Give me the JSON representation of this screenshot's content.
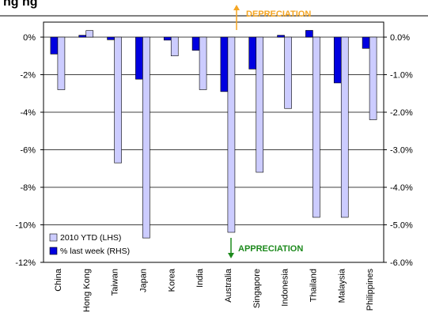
{
  "chart_data": {
    "type": "bar",
    "title": "",
    "title_fragment": "ng      ng",
    "categories": [
      "China",
      "Hong Kong",
      "Taiwan",
      "Japan",
      "Korea",
      "India",
      "Australia",
      "Singapore",
      "Indonesia",
      "Thailand",
      "Malaysia",
      "Philippines"
    ],
    "series": [
      {
        "name": "2010 YTD (LHS)",
        "axis": "left",
        "color": "#ccccff",
        "values": [
          -2.8,
          0.35,
          -6.7,
          -10.7,
          -1.0,
          -2.8,
          -10.4,
          -7.2,
          -3.8,
          -9.6,
          -9.6,
          -4.4
        ]
      },
      {
        "name": "% last week (RHS)",
        "axis": "right",
        "color": "#0000e0",
        "values": [
          -0.45,
          0.05,
          -0.07,
          -1.12,
          -0.08,
          -0.35,
          -1.45,
          -0.85,
          0.05,
          0.18,
          -1.22,
          -0.3
        ]
      }
    ],
    "y_left": {
      "ylim": [
        -12,
        0.8
      ],
      "ticks": [
        0,
        -2,
        -4,
        -6,
        -8,
        -10,
        -12
      ],
      "tick_labels": [
        "0%",
        "-2%",
        "-4%",
        "-6%",
        "-8%",
        "-10%",
        "-12%"
      ]
    },
    "y_right": {
      "ylim": [
        -6,
        0.4
      ],
      "ticks": [
        0,
        -1,
        -2,
        -3,
        -4,
        -5,
        -6
      ],
      "tick_labels": [
        "0.0%",
        "-1.0%",
        "-2.0%",
        "-3.0%",
        "-4.0%",
        "-5.0%",
        "-6.0%"
      ]
    },
    "grid": true,
    "legend": "bottom-left",
    "annotations": {
      "depreciation": "DEPRECIATION",
      "appreciation": "APPRECIATION"
    },
    "colors": {
      "depreciation": "#f5a623",
      "appreciation": "#1d8a1d"
    }
  }
}
